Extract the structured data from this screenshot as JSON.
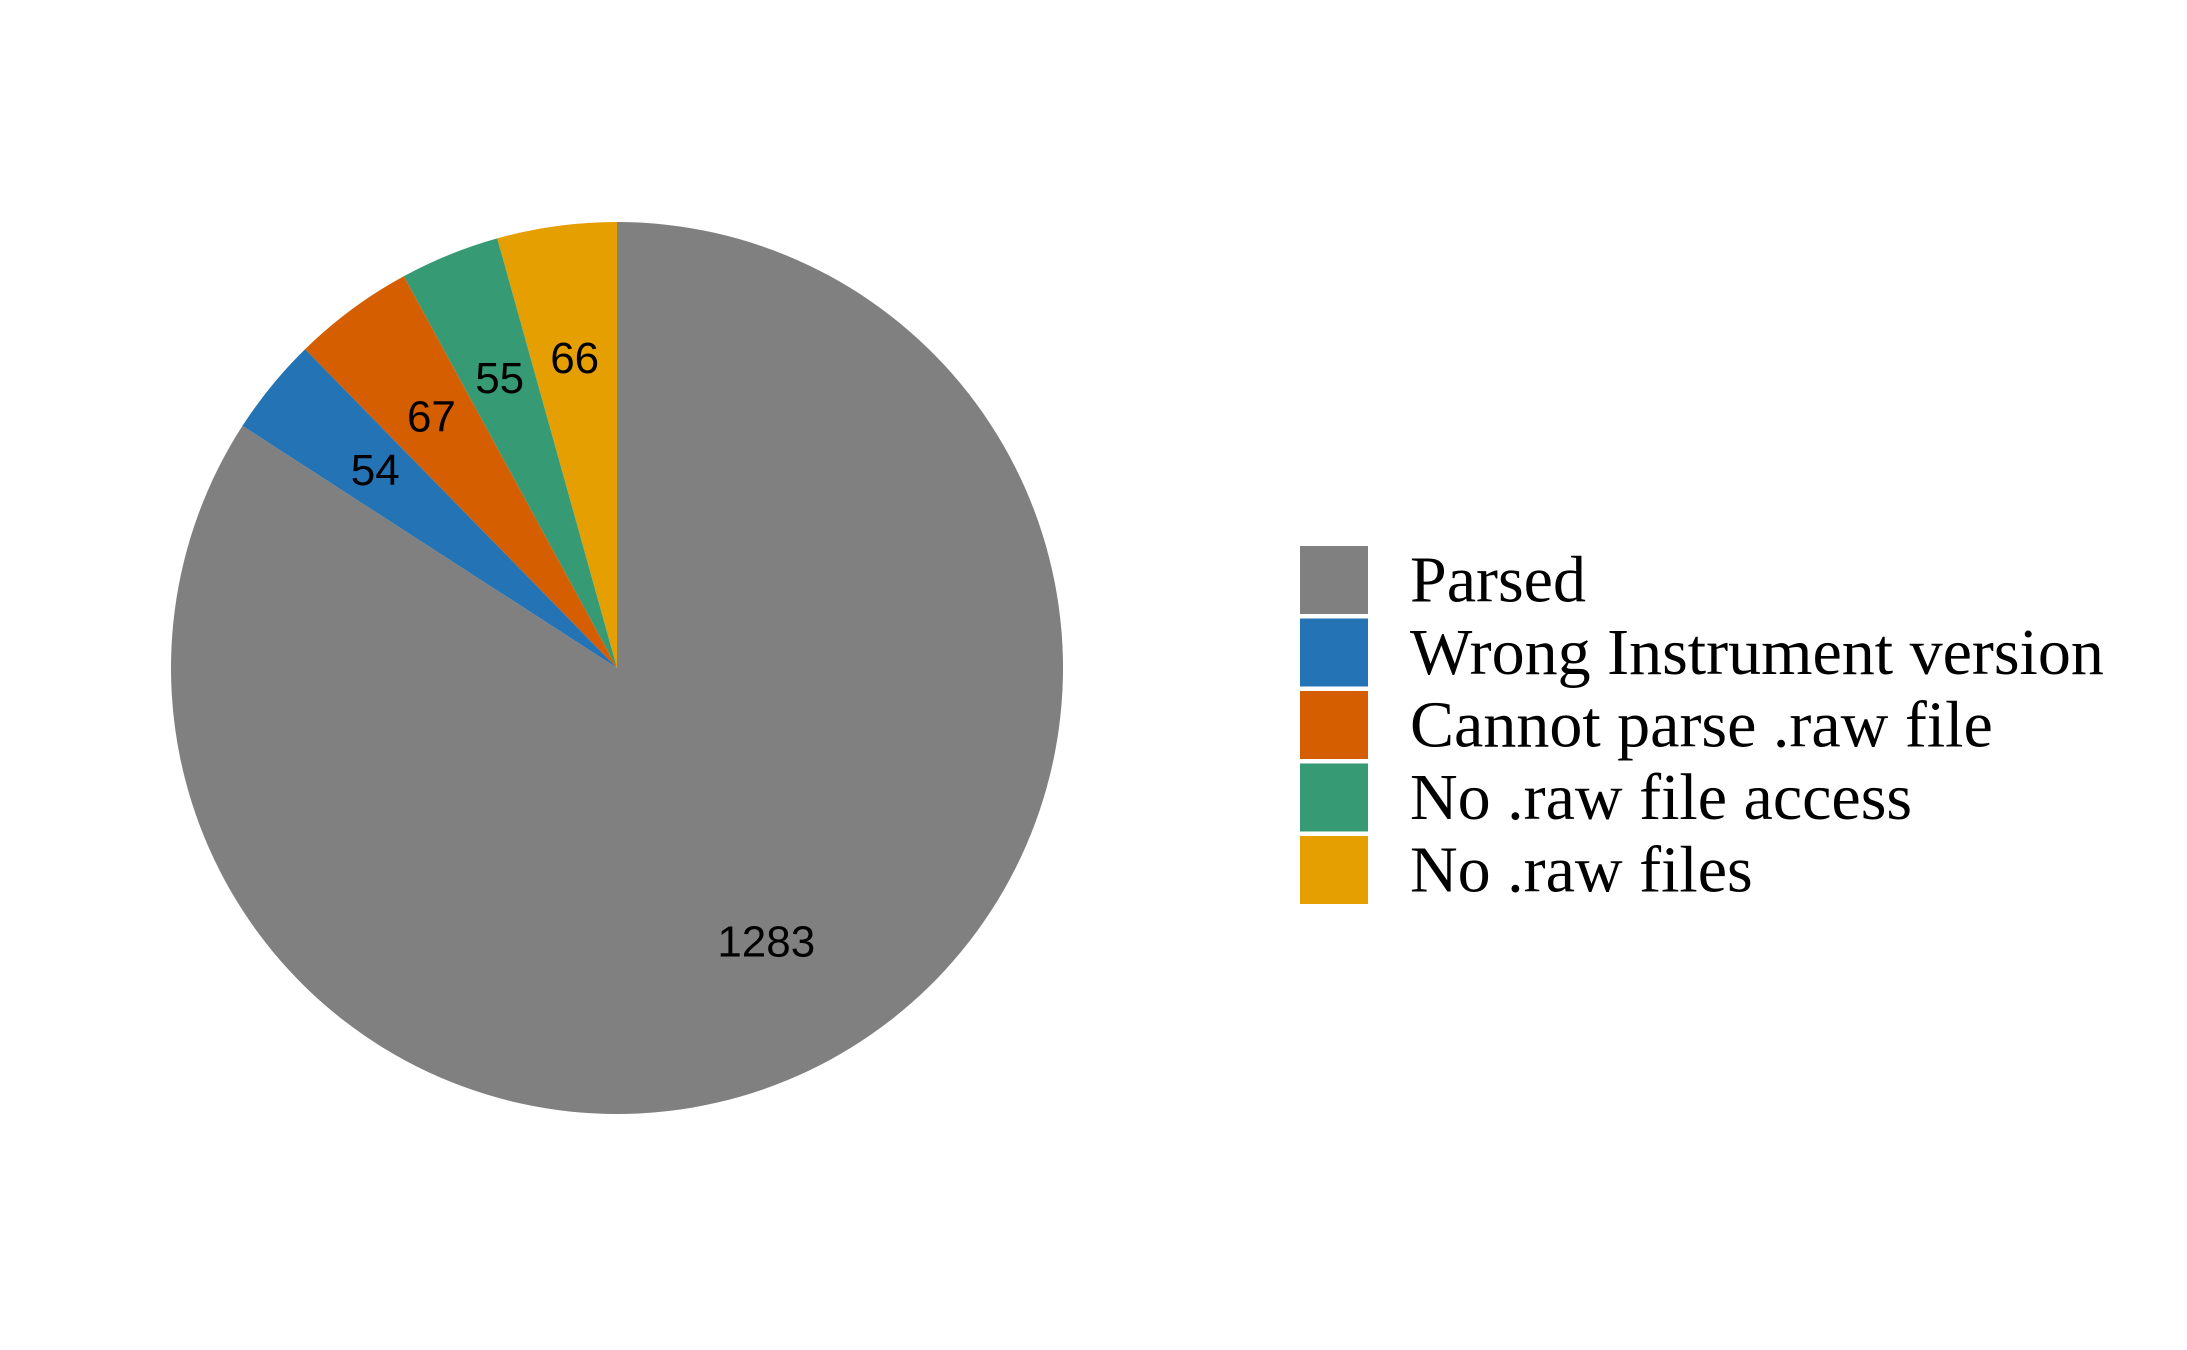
{
  "chart_data": {
    "type": "pie",
    "start": "top",
    "direction": "counterclockwise",
    "slices": [
      {
        "label": "No .raw files",
        "value": 66,
        "color": "#E69F00"
      },
      {
        "label": "No .raw file access",
        "value": 55,
        "color": "#369B74"
      },
      {
        "label": "Cannot parse .raw file",
        "value": 67,
        "color": "#D55E00"
      },
      {
        "label": "Wrong Instrument version",
        "value": 54,
        "color": "#2473B5"
      },
      {
        "label": "Parsed",
        "value": 1283,
        "color": "#808080"
      }
    ],
    "slice_labels": [
      "66",
      "55",
      "67",
      "54",
      "1283"
    ],
    "legend": {
      "position": "right",
      "items": [
        {
          "label": "Parsed",
          "color": "#808080"
        },
        {
          "label": "Wrong Instrument version",
          "color": "#2473B5"
        },
        {
          "label": "Cannot parse .raw file",
          "color": "#D55E00"
        },
        {
          "label": "No .raw file access",
          "color": "#369B74"
        },
        {
          "label": "No .raw files",
          "color": "#E69F00"
        }
      ]
    }
  }
}
